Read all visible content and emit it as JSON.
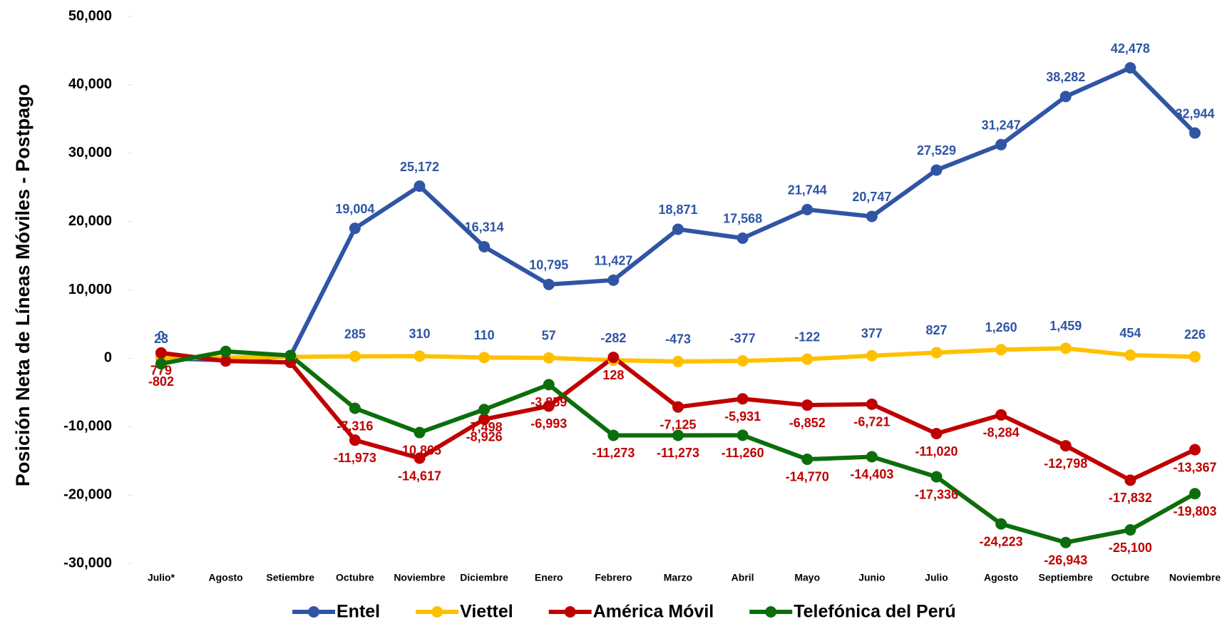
{
  "chart_data": {
    "type": "line",
    "y_label": "Posición Neta de Líneas Móviles - Postpago",
    "categories": [
      "Julio*",
      "Agosto",
      "Setiembre",
      "Octubre",
      "Noviembre",
      "Diciembre",
      "Enero",
      "Febrero",
      "Marzo",
      "Abril",
      "Mayo",
      "Junio",
      "Julio",
      "Agosto",
      "Septiembre",
      "Octubre",
      "Noviembre"
    ],
    "ylim": [
      -30000,
      50000
    ],
    "yticks": [
      {
        "value": -30000,
        "label": "-30,000"
      },
      {
        "value": -20000,
        "label": "-20,000"
      },
      {
        "value": -10000,
        "label": "-10,000"
      },
      0,
      {
        "value": 10000,
        "label": "10,000"
      },
      {
        "value": 20000,
        "label": "20,000"
      },
      {
        "value": 30000,
        "label": "30,000"
      },
      {
        "value": 40000,
        "label": "40,000"
      },
      {
        "value": 50000,
        "label": "50,000"
      }
    ],
    "grid": false,
    "legend": "bottom",
    "series": [
      {
        "name": "Entel",
        "color": "#2f55a4",
        "label_color": "#2f55a4",
        "values": [
          23,
          -300,
          300,
          19004,
          25172,
          16314,
          10795,
          11427,
          18871,
          17568,
          21744,
          20747,
          27529,
          31247,
          38282,
          42478,
          32944
        ],
        "value_labels": [
          "23",
          null,
          null,
          "19,004",
          "25,172",
          "16,314",
          "10,795",
          "11,427",
          "18,871",
          "17,568",
          "21,744",
          "20,747",
          "27,529",
          "31,247",
          "38,282",
          "42,478",
          "32,944"
        ]
      },
      {
        "name": "Viettel",
        "color": "#ffc000",
        "label_color": "#2f55a4",
        "values": [
          0,
          100,
          200,
          285,
          310,
          110,
          57,
          -282,
          -473,
          -377,
          -122,
          377,
          827,
          1260,
          1459,
          454,
          226
        ],
        "value_labels": [
          "0",
          null,
          null,
          "285",
          "310",
          "110",
          "57",
          "-282",
          "-473",
          "-377",
          "-122",
          "377",
          "827",
          "1,260",
          "1,459",
          "454",
          "226"
        ]
      },
      {
        "name": "América Móvil",
        "color": "#c00000",
        "label_color": "#c00000",
        "values": [
          779,
          -400,
          -600,
          -11973,
          -14617,
          -8926,
          -6993,
          128,
          -7125,
          -5931,
          -6852,
          -6721,
          -11020,
          -8284,
          -12798,
          -17832,
          -13367
        ],
        "value_labels": [
          "779",
          null,
          null,
          "-11,973",
          "-14,617",
          "-8,926",
          "-6,993",
          "128",
          "-7,125",
          "-5,931",
          "-6,852",
          "-6,721",
          "-11,020",
          "-8,284",
          "-12,798",
          "-17,832",
          "-13,367"
        ]
      },
      {
        "name": "Telefónica del Perú",
        "color": "#0b6e0b",
        "label_color": "#c00000",
        "values": [
          -802,
          1000,
          400,
          -7316,
          -10865,
          -7498,
          -3859,
          -11273,
          -11273,
          -11260,
          -14770,
          -14403,
          -17336,
          -24223,
          -26943,
          -25100,
          -19803
        ],
        "value_labels": [
          "-802",
          null,
          null,
          "-7,316",
          "-10,865",
          "-7,498",
          "-3,859",
          "-11,273",
          "-11,273",
          "-11,260",
          "-14,770",
          "-14,403",
          "-17,336",
          "-24,223",
          "-26,943",
          "-25,100",
          "-19,803"
        ]
      }
    ]
  }
}
